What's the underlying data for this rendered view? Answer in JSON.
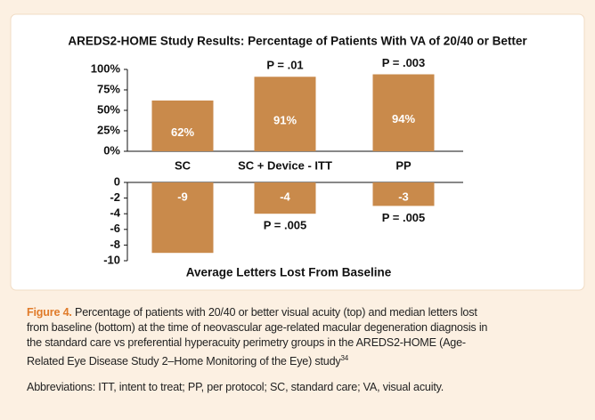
{
  "chart_data": [
    {
      "type": "bar",
      "title": "AREDS2-HOME Study Results: Percentage of Patients With VA of 20/40 or Better",
      "categories": [
        "SC",
        "SC + Device - ITT",
        "PP"
      ],
      "values": [
        62,
        91,
        94
      ],
      "value_labels": [
        "62%",
        "91%",
        "94%"
      ],
      "annotations": [
        null,
        "P = .01",
        "P = .003"
      ],
      "color": "#c98a4b",
      "ylim": [
        0,
        100
      ],
      "yticks": [
        {
          "value": 0,
          "label": "0%"
        },
        {
          "value": 25,
          "label": "25%"
        },
        {
          "value": 50,
          "label": "50%"
        },
        {
          "value": 75,
          "label": "75%"
        },
        {
          "value": 100,
          "label": "100%"
        }
      ]
    },
    {
      "type": "bar",
      "xlabel": "Average Letters Lost From Baseline",
      "values": [
        -9,
        -4,
        -3
      ],
      "annotations": [
        null,
        "P = .005",
        "P = .005"
      ],
      "color": "#c98a4b",
      "ylim": [
        -10,
        0
      ],
      "yticks": [
        -10,
        -8,
        -6,
        -4,
        -2,
        0
      ]
    }
  ],
  "caption": {
    "label": "Figure 4.",
    "text": "Percentage of patients with 20/40 or better visual acuity (top) and median letters lost from baseline (bottom) at the time of neovascular age-related macular degeneration diagnosis in the standard care vs preferential hyperacuity perimetry groups in the AREDS2-HOME (Age-Related Eye Disease Study 2–Home Monitoring of the Eye) study",
    "reference": "34",
    "abbreviations": "Abbreviations: ITT, intent to treat; PP, per protocol; SC, standard care; VA, visual acuity."
  }
}
